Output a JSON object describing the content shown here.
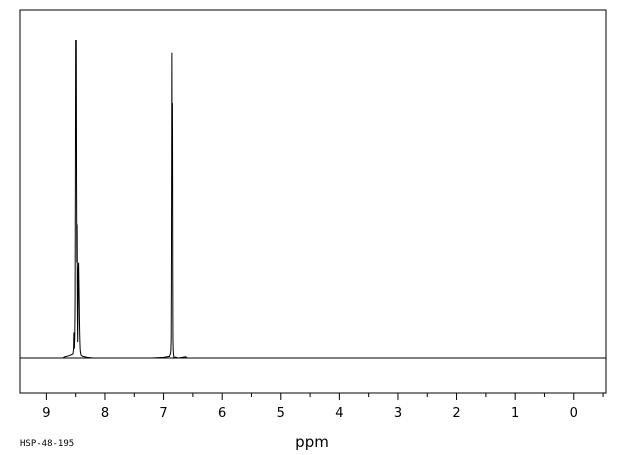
{
  "chart_data": {
    "type": "line",
    "title": "",
    "xlabel": "ppm",
    "ylabel": "",
    "xlim": [
      9.45,
      -0.55
    ],
    "ylim": [
      0,
      100
    ],
    "x_reversed": true,
    "grid": false,
    "legend": "none",
    "tick_labels": [
      "9",
      "8",
      "7",
      "6",
      "5",
      "4",
      "3",
      "2",
      "1",
      "0"
    ],
    "tick_values": [
      9,
      8,
      7,
      6,
      5,
      4,
      3,
      2,
      1,
      0
    ],
    "minor_tick_step": 0.5,
    "sample_id": "HSP-48-195",
    "series": [
      {
        "x": [
          9.45,
          8.72,
          8.68,
          8.6,
          8.545,
          8.535,
          8.53,
          8.522,
          8.515,
          8.51,
          8.505,
          8.5,
          8.495,
          8.49,
          8.485,
          8.48,
          8.475,
          8.47,
          8.465,
          8.46,
          8.455,
          8.45,
          8.445,
          8.44,
          8.436,
          8.432,
          8.428,
          8.424,
          8.42,
          8.41,
          8.38,
          8.3,
          8.2,
          7.2,
          7.0,
          6.9,
          6.88,
          6.875,
          6.87,
          6.866,
          6.862,
          6.858,
          6.855,
          6.852,
          6.849,
          6.846,
          6.843,
          6.84,
          6.836,
          6.832,
          6.826,
          6.82,
          6.8,
          6.75,
          6.62,
          6.6,
          -0.55
        ],
        "y": [
          0,
          0,
          0.4,
          0.8,
          1.3,
          3,
          8,
          3,
          7,
          18,
          55,
          100,
          75,
          100,
          55,
          30,
          42,
          12,
          5,
          15,
          28,
          30,
          24,
          18,
          12,
          8,
          5,
          3,
          2,
          1,
          0.5,
          0.2,
          0,
          0,
          0.2,
          0.5,
          1.5,
          2.5,
          6,
          25,
          60,
          96,
          60,
          80,
          80,
          60,
          25,
          6,
          2.5,
          1.5,
          0.5,
          0,
          0.3,
          0,
          0.4,
          0,
          0
        ]
      }
    ]
  }
}
